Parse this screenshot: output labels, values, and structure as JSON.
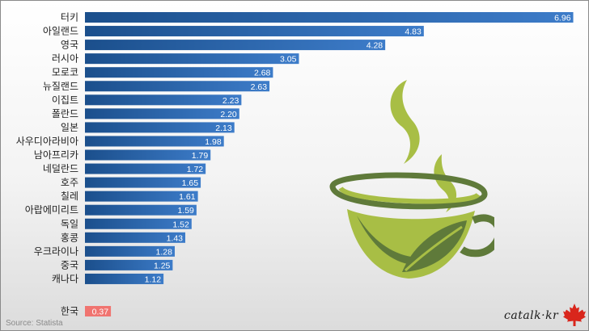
{
  "chart_data": {
    "type": "bar",
    "orientation": "horizontal",
    "categories": [
      "터키",
      "아일랜드",
      "영국",
      "러시아",
      "모로코",
      "뉴질랜드",
      "이집트",
      "폴란드",
      "일본",
      "사우디아라비아",
      "남아프리카",
      "네덜란드",
      "호주",
      "칠레",
      "아랍에미리트",
      "독일",
      "홍콩",
      "우크라이나",
      "중국",
      "캐나다"
    ],
    "values": [
      6.96,
      4.83,
      4.28,
      3.05,
      2.68,
      2.63,
      2.23,
      2.2,
      2.13,
      1.98,
      1.79,
      1.72,
      1.65,
      1.61,
      1.59,
      1.52,
      1.43,
      1.28,
      1.25,
      1.12
    ],
    "value_labels": [
      "6.96",
      "4.83",
      "4.28",
      "3.05",
      "2.68",
      "2.63",
      "2.23",
      "2.20",
      "2.13",
      "1.98",
      "1.79",
      "1.72",
      "1.65",
      "1.61",
      "1.59",
      "1.52",
      "1.43",
      "1.28",
      "1.25",
      "1.12"
    ],
    "highlight": {
      "category": "한국",
      "value": 0.37,
      "value_label": "0.37"
    },
    "xlim": [
      0,
      7
    ],
    "grid": false,
    "legend": "none",
    "title": "",
    "xlabel": "",
    "ylabel": ""
  },
  "colors": {
    "bar_start": "#1b4f8c",
    "bar_end": "#3d7cc9",
    "highlight_bar": "#f07470",
    "tea_green": "#a8be45",
    "tea_olive": "#5f7a3a"
  },
  "footer": {
    "source": "Source: Statista",
    "brand": "catalk·kr",
    "brand_icon": "maple-leaf-icon"
  },
  "decoration": {
    "illustration": "tea-cup-icon"
  }
}
